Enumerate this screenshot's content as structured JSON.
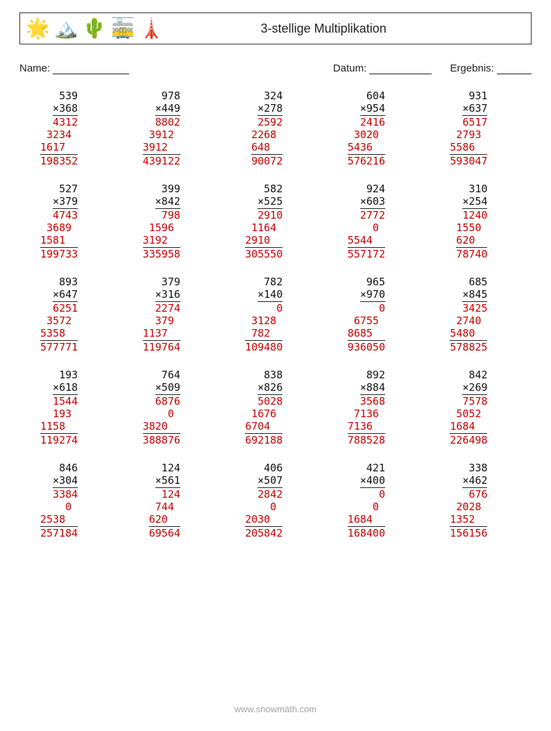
{
  "title": "3-stellige Multiplikation",
  "labels": {
    "name": "Name:",
    "date": "Datum:",
    "result": "Ergebnis:"
  },
  "footer": "www.snowmath.com",
  "colors": {
    "text": "#111111",
    "answer": "#c80000",
    "rule": "#222222",
    "background": "#ffffff"
  },
  "font": {
    "family": "Arial",
    "size_pt": 11
  },
  "type": "worksheet-long-multiplication",
  "layout": {
    "rows": 5,
    "cols": 5,
    "char_width": 6
  },
  "icons": [
    "starfish",
    "mountains",
    "cactus",
    "tram",
    "tower"
  ],
  "problems": [
    {
      "a": 539,
      "b": 368,
      "partials": [
        4312,
        3234,
        1617
      ],
      "product": 198352
    },
    {
      "a": 978,
      "b": 449,
      "partials": [
        8802,
        3912,
        3912
      ],
      "product": 439122
    },
    {
      "a": 324,
      "b": 278,
      "partials": [
        2592,
        2268,
        648
      ],
      "product": 90072
    },
    {
      "a": 604,
      "b": 954,
      "partials": [
        2416,
        3020,
        5436
      ],
      "product": 576216
    },
    {
      "a": 931,
      "b": 637,
      "partials": [
        6517,
        2793,
        5586
      ],
      "product": 593047
    },
    {
      "a": 527,
      "b": 379,
      "partials": [
        4743,
        3689,
        1581
      ],
      "product": 199733
    },
    {
      "a": 399,
      "b": 842,
      "partials": [
        798,
        1596,
        3192
      ],
      "product": 335958
    },
    {
      "a": 582,
      "b": 525,
      "partials": [
        2910,
        1164,
        2910
      ],
      "product": 305550
    },
    {
      "a": 924,
      "b": 603,
      "partials": [
        2772,
        0,
        5544
      ],
      "product": 557172
    },
    {
      "a": 310,
      "b": 254,
      "partials": [
        1240,
        1550,
        620
      ],
      "product": 78740
    },
    {
      "a": 893,
      "b": 647,
      "partials": [
        6251,
        3572,
        5358
      ],
      "product": 577771
    },
    {
      "a": 379,
      "b": 316,
      "partials": [
        2274,
        379,
        1137
      ],
      "product": 119764
    },
    {
      "a": 782,
      "b": 140,
      "partials": [
        0,
        3128,
        782
      ],
      "product": 109480
    },
    {
      "a": 965,
      "b": 970,
      "partials": [
        0,
        6755,
        8685
      ],
      "product": 936050
    },
    {
      "a": 685,
      "b": 845,
      "partials": [
        3425,
        2740,
        5480
      ],
      "product": 578825
    },
    {
      "a": 193,
      "b": 618,
      "partials": [
        1544,
        193,
        1158
      ],
      "product": 119274
    },
    {
      "a": 764,
      "b": 509,
      "partials": [
        6876,
        0,
        3820
      ],
      "product": 388876
    },
    {
      "a": 838,
      "b": 826,
      "partials": [
        5028,
        1676,
        6704
      ],
      "product": 692188
    },
    {
      "a": 892,
      "b": 884,
      "partials": [
        3568,
        7136,
        7136
      ],
      "product": 788528
    },
    {
      "a": 842,
      "b": 269,
      "partials": [
        7578,
        5052,
        1684
      ],
      "product": 226498
    },
    {
      "a": 846,
      "b": 304,
      "partials": [
        3384,
        0,
        2538
      ],
      "product": 257184
    },
    {
      "a": 124,
      "b": 561,
      "partials": [
        124,
        744,
        620
      ],
      "product": 69564
    },
    {
      "a": 406,
      "b": 507,
      "partials": [
        2842,
        0,
        2030
      ],
      "product": 205842
    },
    {
      "a": 421,
      "b": 400,
      "partials": [
        0,
        0,
        1684
      ],
      "product": 168400
    },
    {
      "a": 338,
      "b": 462,
      "partials": [
        676,
        2028,
        1352
      ],
      "product": 156156
    }
  ]
}
